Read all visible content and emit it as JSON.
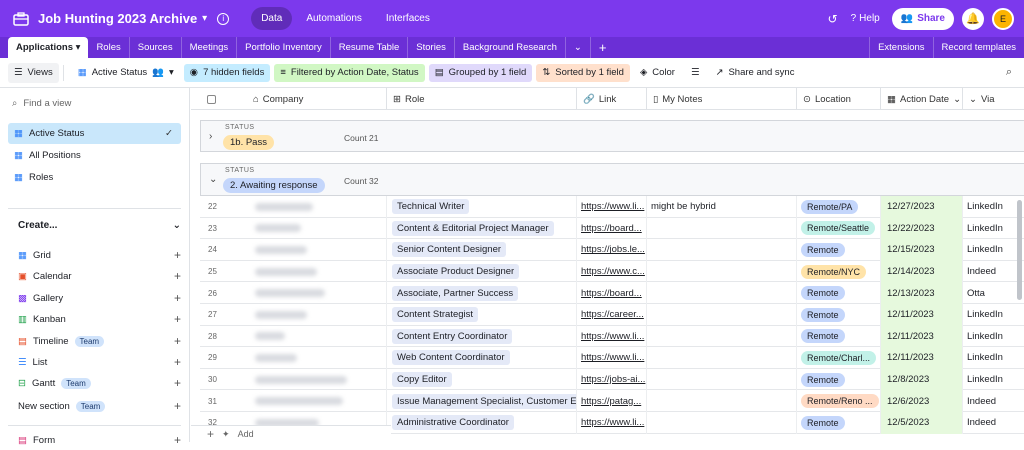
{
  "app": {
    "base_title": "Job Hunting 2023 Archive",
    "nav_tabs": [
      {
        "label": "Data",
        "active": true
      },
      {
        "label": "Automations",
        "active": false
      },
      {
        "label": "Interfaces",
        "active": false
      }
    ],
    "help_label": "Help",
    "share_label": "Share",
    "avatar_initial": "E",
    "colors": {
      "topbar": "#7c39ed",
      "accent": "#7c39ed"
    }
  },
  "tables": {
    "tabs": [
      "Applications",
      "Roles",
      "Sources",
      "Meetings",
      "Portfolio Inventory",
      "Resume Table",
      "Stories",
      "Background Research"
    ],
    "right": [
      "Extensions",
      "Record templates"
    ]
  },
  "viewbar": {
    "views_label": "Views",
    "current_view": "Active Status",
    "hidden_fields": "7 hidden fields",
    "filter": "Filtered by Action Date, Status",
    "group": "Grouped by 1 field",
    "sort": "Sorted by 1 field",
    "color": "Color",
    "share_sync": "Share and sync"
  },
  "sidebar": {
    "find_placeholder": "Find a view",
    "views": [
      {
        "label": "Active Status",
        "active": true
      },
      {
        "label": "All Positions",
        "active": false
      },
      {
        "label": "Roles",
        "active": false
      }
    ],
    "create_label": "Create...",
    "create_items": [
      {
        "label": "Grid",
        "icon": "grid-icon",
        "team": ""
      },
      {
        "label": "Calendar",
        "icon": "calendar-icon",
        "team": ""
      },
      {
        "label": "Gallery",
        "icon": "gallery-icon",
        "team": ""
      },
      {
        "label": "Kanban",
        "icon": "kanban-icon",
        "team": ""
      },
      {
        "label": "Timeline",
        "icon": "timeline-icon",
        "team": "Team"
      },
      {
        "label": "List",
        "icon": "list-icon",
        "team": ""
      },
      {
        "label": "Gantt",
        "icon": "gantt-icon",
        "team": "Team"
      },
      {
        "label": "New section",
        "icon": "",
        "team": "Team"
      },
      {
        "label": "Form",
        "icon": "form-icon",
        "team": ""
      }
    ]
  },
  "grid": {
    "columns": [
      "Company",
      "Role",
      "Link",
      "My Notes",
      "Location",
      "Action Date",
      "Via"
    ],
    "groups": [
      {
        "label": "STATUS",
        "name": "1b. Pass",
        "count": "Count 21"
      },
      {
        "label": "STATUS",
        "name": "2. Awaiting response",
        "count": "Count 32"
      }
    ],
    "rows": [
      {
        "num": "22",
        "role": "Technical Writer",
        "link": "https://www.li...",
        "notes": "might be hybrid",
        "location": "Remote/PA",
        "loc_color": "#c4d6fb",
        "date": "12/27/2023",
        "via": "LinkedIn"
      },
      {
        "num": "23",
        "role": "Content & Editorial Project Manager",
        "link": "https://board...",
        "notes": "",
        "location": "Remote/Seattle",
        "loc_color": "#c2f1e8",
        "date": "12/22/2023",
        "via": "LinkedIn"
      },
      {
        "num": "24",
        "role": "Senior Content Designer",
        "link": "https://jobs.le...",
        "notes": "",
        "location": "Remote",
        "loc_color": "#c4d6fb",
        "date": "12/15/2023",
        "via": "LinkedIn"
      },
      {
        "num": "25",
        "role": "Associate Product Designer",
        "link": "https://www.c...",
        "notes": "",
        "location": "Remote/NYC",
        "loc_color": "#ffe3a8",
        "date": "12/14/2023",
        "via": "Indeed"
      },
      {
        "num": "26",
        "role": "Associate, Partner Success",
        "link": "https://board...",
        "notes": "",
        "location": "Remote",
        "loc_color": "#c4d6fb",
        "date": "12/13/2023",
        "via": "Otta"
      },
      {
        "num": "27",
        "role": "Content Strategist",
        "link": "https://career...",
        "notes": "",
        "location": "Remote",
        "loc_color": "#c4d6fb",
        "date": "12/11/2023",
        "via": "LinkedIn"
      },
      {
        "num": "28",
        "role": "Content Entry Coordinator",
        "link": "https://www.li...",
        "notes": "",
        "location": "Remote",
        "loc_color": "#c4d6fb",
        "date": "12/11/2023",
        "via": "LinkedIn"
      },
      {
        "num": "29",
        "role": "Web Content Coordinator",
        "link": "https://www.li...",
        "notes": "",
        "location": "Remote/Charl...",
        "loc_color": "#c2f1e8",
        "date": "12/11/2023",
        "via": "LinkedIn"
      },
      {
        "num": "30",
        "role": "Copy Editor",
        "link": "https://jobs-ai...",
        "notes": "",
        "location": "Remote",
        "loc_color": "#c4d6fb",
        "date": "12/8/2023",
        "via": "LinkedIn"
      },
      {
        "num": "31",
        "role": "Issue Management Specialist, Customer Experie",
        "link": "https://patag...",
        "notes": "",
        "location": "Remote/Reno ...",
        "loc_color": "#ffdac4",
        "date": "12/6/2023",
        "via": "Indeed"
      },
      {
        "num": "32",
        "role": "Administrative Coordinator",
        "link": "https://www.li...",
        "notes": "",
        "location": "Remote",
        "loc_color": "#c4d6fb",
        "date": "12/5/2023",
        "via": "Indeed"
      }
    ],
    "add_label": "Add"
  }
}
